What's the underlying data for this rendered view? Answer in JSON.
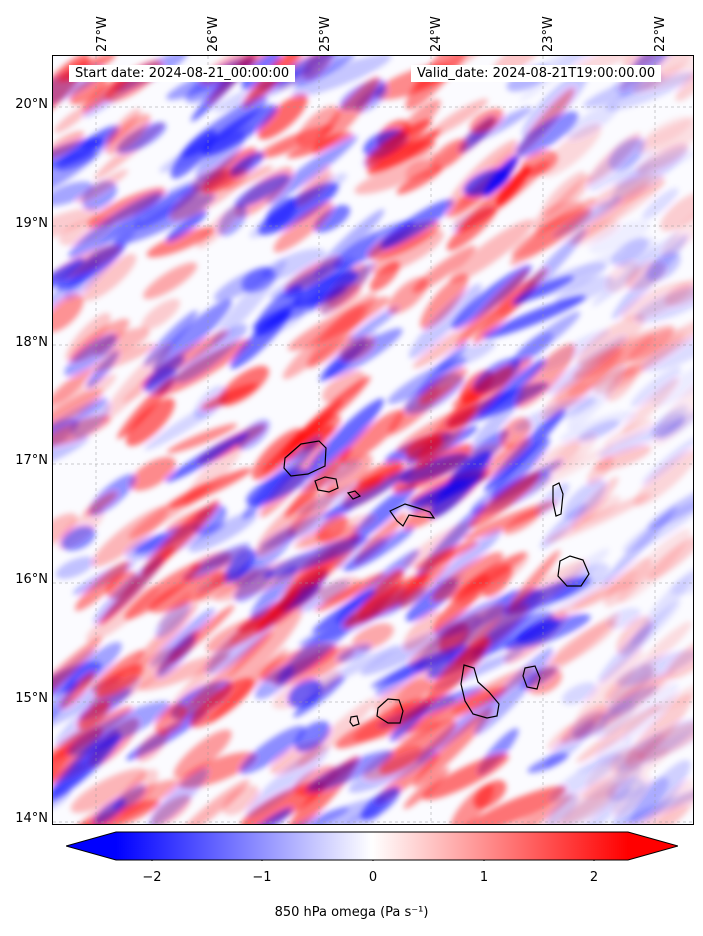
{
  "map": {
    "start_date": "Start date: 2024-08-21_00:00:00",
    "valid_date": "Valid_date: 2024-08-21T19:00:00.00",
    "lon_labels": [
      "27°W",
      "26°W",
      "25°W",
      "24°W",
      "23°W",
      "22°W"
    ],
    "lat_labels": [
      "20°N",
      "19°N",
      "18°N",
      "17°N",
      "16°N",
      "15°N",
      "14°N"
    ]
  },
  "colorbar": {
    "ticks": [
      "−2",
      "−1",
      "0",
      "1",
      "2"
    ],
    "label": "850 hPa omega (Pa s⁻¹)",
    "colors": {
      "min": "#0000ff",
      "mid": "#ffffff",
      "max": "#ff0000"
    }
  }
}
